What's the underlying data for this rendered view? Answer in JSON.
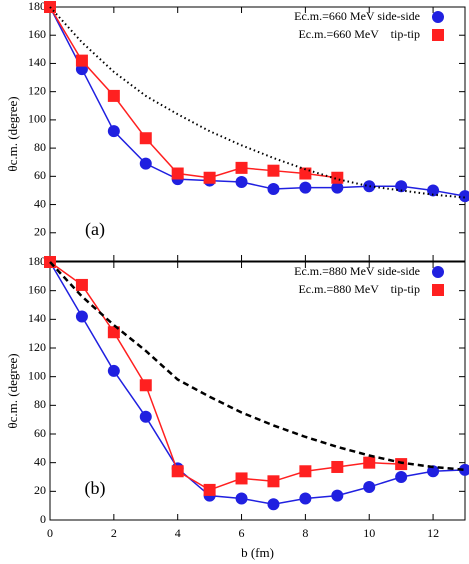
{
  "chart_data": [
    {
      "type": "line",
      "panel_label": "(a)",
      "y_label": "θc.m. (degree)",
      "xlim": [
        0,
        13
      ],
      "xticks": [
        0,
        2,
        4,
        6,
        8,
        10,
        12
      ],
      "ylim": [
        0,
        180
      ],
      "yticks": [
        20,
        40,
        60,
        80,
        100,
        120,
        140,
        160,
        180
      ],
      "series": [
        {
          "name": "Ec.m.=660 MeV side-side",
          "color": "#2020e0",
          "marker": "circle",
          "x": [
            0,
            1,
            2,
            3,
            4,
            5,
            6,
            7,
            8,
            9,
            10,
            11,
            12,
            13
          ],
          "values": [
            180,
            136,
            92,
            69,
            58,
            57,
            56,
            51,
            52,
            52,
            53,
            53,
            50,
            46
          ]
        },
        {
          "name": "Ec.m.=660 MeV    tip-tip",
          "color": "#ff2020",
          "marker": "square",
          "x": [
            0,
            1,
            2,
            3,
            4,
            5,
            6,
            7,
            8,
            9
          ],
          "values": [
            180,
            142,
            117,
            87,
            62,
            59,
            66,
            64,
            62,
            59
          ]
        },
        {
          "color": "#000000",
          "style": "dotted",
          "x": [
            0,
            1,
            2,
            3,
            4,
            5,
            6,
            7,
            8,
            9,
            10,
            11,
            12,
            13
          ],
          "values": [
            180,
            155,
            134,
            117,
            104,
            92,
            82,
            73,
            65,
            58,
            53,
            50,
            47,
            45
          ]
        }
      ]
    },
    {
      "type": "line",
      "panel_label": "(b)",
      "y_label": "θc.m. (degree)",
      "x_label": "b (fm)",
      "xlim": [
        0,
        13
      ],
      "xticks": [
        0,
        2,
        4,
        6,
        8,
        10,
        12
      ],
      "ylim": [
        0,
        180
      ],
      "yticks": [
        0,
        20,
        40,
        60,
        80,
        100,
        120,
        140,
        160,
        180
      ],
      "series": [
        {
          "name": "Ec.m.=880 MeV side-side",
          "color": "#2020e0",
          "marker": "circle",
          "x": [
            0,
            1,
            2,
            3,
            4,
            5,
            6,
            7,
            8,
            9,
            10,
            11,
            12,
            13
          ],
          "values": [
            180,
            142,
            104,
            72,
            36,
            17,
            15,
            11,
            15,
            17,
            23,
            30,
            34,
            35
          ]
        },
        {
          "name": "Ec.m.=880 MeV    tip-tip",
          "color": "#ff2020",
          "marker": "square",
          "x": [
            0,
            1,
            2,
            3,
            4,
            5,
            6,
            7,
            8,
            9,
            10,
            11
          ],
          "values": [
            180,
            164,
            131,
            94,
            34,
            21,
            29,
            27,
            34,
            37,
            40,
            39
          ]
        },
        {
          "color": "#000000",
          "style": "dashed",
          "x": [
            0,
            1,
            2,
            3,
            4,
            5,
            6,
            7,
            8,
            9,
            10,
            11,
            12,
            13
          ],
          "values": [
            180,
            156,
            136,
            118,
            98,
            86,
            75,
            66,
            58,
            51,
            45,
            40,
            37,
            35
          ]
        }
      ]
    }
  ]
}
